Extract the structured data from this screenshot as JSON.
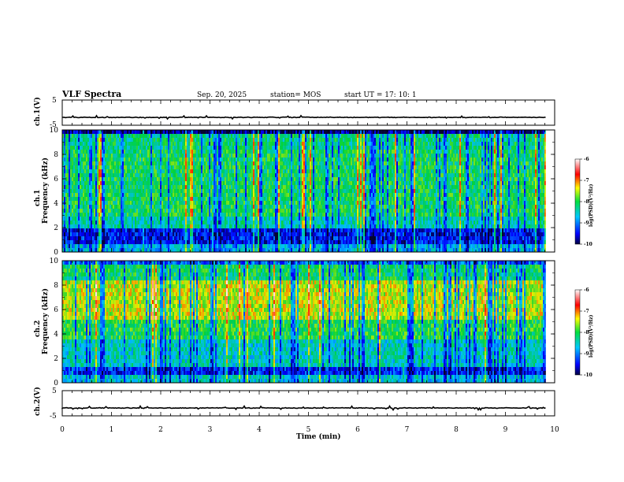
{
  "header": {
    "title": "VLF Spectra",
    "date": "Sep. 20, 2025",
    "station": "station= MOS",
    "start": "start  UT  =   17: 10: 1"
  },
  "chart_data": [
    {
      "type": "line",
      "name": "ch1-voltage",
      "ylabel": "ch.1(V)",
      "ylim": [
        -5,
        5
      ],
      "yticks": [
        "5",
        "-5"
      ],
      "trace_level": 0
    },
    {
      "type": "heatmap",
      "name": "ch1-spectrogram",
      "ylabel_line1": "ch.1",
      "ylabel_line2": "Frequency (kHz)",
      "ylim": [
        0,
        10
      ],
      "yticks": [
        "0",
        "2",
        "4",
        "6",
        "8",
        "10"
      ],
      "colorbar": {
        "label": "log(PSD)(V²/Hz)",
        "ticks": [
          "-6",
          "-7",
          "-8",
          "-9",
          "-10"
        ],
        "range": [
          -10,
          -6
        ]
      }
    },
    {
      "type": "heatmap",
      "name": "ch2-spectrogram",
      "ylabel_line1": "ch.2",
      "ylabel_line2": "Frequency (kHz)",
      "ylim": [
        0,
        10
      ],
      "yticks": [
        "0",
        "2",
        "4",
        "6",
        "8",
        "10"
      ],
      "colorbar": {
        "label": "log(PSD)(V²/Hz)",
        "ticks": [
          "-6",
          "-7",
          "-8",
          "-9",
          "-10"
        ],
        "range": [
          -10,
          -6
        ]
      }
    },
    {
      "type": "line",
      "name": "ch2-voltage",
      "ylabel": "ch.2(V)",
      "ylim": [
        -5,
        5
      ],
      "yticks": [
        "5",
        "-5"
      ],
      "trace_level": 0
    }
  ],
  "xaxis": {
    "label": "Time (min)",
    "xlim": [
      0,
      10
    ],
    "ticks": [
      "0",
      "1",
      "2",
      "3",
      "4",
      "5",
      "6",
      "7",
      "8",
      "9",
      "10"
    ],
    "data_end": 9.82
  }
}
